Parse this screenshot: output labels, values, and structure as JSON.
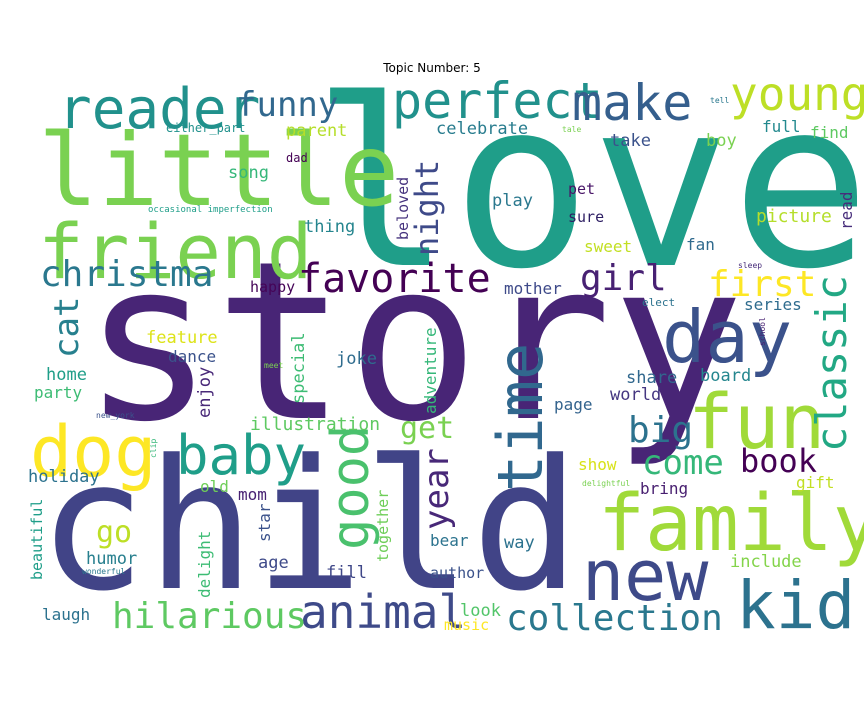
{
  "chart_data": {
    "type": "wordcloud",
    "title": "Topic Number: 5",
    "words": [
      {
        "text": "love",
        "weight": 100,
        "color": "#1f9e89"
      },
      {
        "text": "story",
        "weight": 98,
        "color": "#482576"
      },
      {
        "text": "child",
        "weight": 90,
        "color": "#414487"
      },
      {
        "text": "little",
        "weight": 55,
        "color": "#7ad151"
      },
      {
        "text": "friend",
        "weight": 45,
        "color": "#7ad151"
      },
      {
        "text": "fun",
        "weight": 45,
        "color": "#a0da39"
      },
      {
        "text": "family",
        "weight": 44,
        "color": "#a0da39"
      },
      {
        "text": "day",
        "weight": 42,
        "color": "#3b528b"
      },
      {
        "text": "new",
        "weight": 40,
        "color": "#3e4a89"
      },
      {
        "text": "dog",
        "weight": 40,
        "color": "#fde725"
      },
      {
        "text": "kid",
        "weight": 38,
        "color": "#2c728e"
      },
      {
        "text": "time",
        "weight": 36,
        "color": "#31688e"
      },
      {
        "text": "reader",
        "weight": 33,
        "color": "#21918c"
      },
      {
        "text": "perfect",
        "weight": 33,
        "color": "#21918c"
      },
      {
        "text": "make",
        "weight": 33,
        "color": "#355f8d"
      },
      {
        "text": "baby",
        "weight": 32,
        "color": "#1f9e89"
      },
      {
        "text": "good",
        "weight": 31,
        "color": "#4ac16d"
      },
      {
        "text": "young",
        "weight": 29,
        "color": "#bddf26"
      },
      {
        "text": "classic",
        "weight": 28,
        "color": "#22a884"
      },
      {
        "text": "animal",
        "weight": 27,
        "color": "#3e4a89"
      },
      {
        "text": "favorite",
        "weight": 26,
        "color": "#440154"
      },
      {
        "text": "christma",
        "weight": 24,
        "color": "#2a788e"
      },
      {
        "text": "hilarious",
        "weight": 24,
        "color": "#5ec962"
      },
      {
        "text": "collection",
        "weight": 24,
        "color": "#2a788e"
      },
      {
        "text": "funny",
        "weight": 23,
        "color": "#31688e"
      },
      {
        "text": "girl",
        "weight": 23,
        "color": "#482173"
      },
      {
        "text": "book",
        "weight": 22,
        "color": "#440154"
      },
      {
        "text": "night",
        "weight": 22,
        "color": "#3e4a89"
      },
      {
        "text": "first",
        "weight": 22,
        "color": "#fde725"
      },
      {
        "text": "come",
        "weight": 21,
        "color": "#35b779"
      },
      {
        "text": "big",
        "weight": 21,
        "color": "#2c728e"
      },
      {
        "text": "year",
        "weight": 21,
        "color": "#482878"
      },
      {
        "text": "cat",
        "weight": 20,
        "color": "#27808e"
      },
      {
        "text": "get",
        "weight": 18,
        "color": "#7ad151"
      },
      {
        "text": "go",
        "weight": 18,
        "color": "#bddf26"
      },
      {
        "text": "picture",
        "weight": 12,
        "color": "#b5de2b"
      },
      {
        "text": "celebrate",
        "weight": 11,
        "color": "#287c8e"
      },
      {
        "text": "take",
        "weight": 11,
        "color": "#3b528b"
      },
      {
        "text": "parent",
        "weight": 11,
        "color": "#b5de2b"
      },
      {
        "text": "song",
        "weight": 11,
        "color": "#35b779"
      },
      {
        "text": "thing",
        "weight": 11,
        "color": "#25858e"
      },
      {
        "text": "play",
        "weight": 11,
        "color": "#2a788e"
      },
      {
        "text": "full",
        "weight": 11,
        "color": "#23898e"
      },
      {
        "text": "find",
        "weight": 11,
        "color": "#5ec962"
      },
      {
        "text": "boy",
        "weight": 11,
        "color": "#7ad151"
      },
      {
        "text": "read",
        "weight": 11,
        "color": "#472d7b"
      },
      {
        "text": "fan",
        "weight": 11,
        "color": "#306a8e"
      },
      {
        "text": "sweet",
        "weight": 11,
        "color": "#c2df23"
      },
      {
        "text": "sure",
        "weight": 11,
        "color": "#2d1e63"
      },
      {
        "text": "pet",
        "weight": 11,
        "color": "#481467"
      },
      {
        "text": "beloved",
        "weight": 11,
        "color": "#46337e"
      },
      {
        "text": "mother",
        "weight": 11,
        "color": "#3e4a89"
      },
      {
        "text": "happy",
        "weight": 11,
        "color": "#450457"
      },
      {
        "text": "series",
        "weight": 11,
        "color": "#2f6c8e"
      },
      {
        "text": "feature",
        "weight": 11,
        "color": "#dde318"
      },
      {
        "text": "dance",
        "weight": 11,
        "color": "#3b528b"
      },
      {
        "text": "joke",
        "weight": 11,
        "color": "#2f6c8e"
      },
      {
        "text": "special",
        "weight": 11,
        "color": "#3dbc74"
      },
      {
        "text": "adventure",
        "weight": 11,
        "color": "#35b779"
      },
      {
        "text": "share",
        "weight": 11,
        "color": "#31688e"
      },
      {
        "text": "board",
        "weight": 11,
        "color": "#24868e"
      },
      {
        "text": "page",
        "weight": 11,
        "color": "#33638d"
      },
      {
        "text": "world",
        "weight": 11,
        "color": "#453781"
      },
      {
        "text": "home",
        "weight": 11,
        "color": "#1f9e89"
      },
      {
        "text": "party",
        "weight": 11,
        "color": "#3dbc74"
      },
      {
        "text": "enjoy",
        "weight": 11,
        "color": "#482878"
      },
      {
        "text": "illustration",
        "weight": 11,
        "color": "#5ec962"
      },
      {
        "text": "holiday",
        "weight": 11,
        "color": "#2c728e"
      },
      {
        "text": "old",
        "weight": 11,
        "color": "#6ece58"
      },
      {
        "text": "mom",
        "weight": 11,
        "color": "#482173"
      },
      {
        "text": "show",
        "weight": 11,
        "color": "#d8e219"
      },
      {
        "text": "bring",
        "weight": 11,
        "color": "#481f70"
      },
      {
        "text": "gift",
        "weight": 11,
        "color": "#c2df23"
      },
      {
        "text": "humor",
        "weight": 11,
        "color": "#277f8e"
      },
      {
        "text": "delight",
        "weight": 11,
        "color": "#3dbc74"
      },
      {
        "text": "star",
        "weight": 11,
        "color": "#3b528b"
      },
      {
        "text": "together",
        "weight": 11,
        "color": "#6ece58"
      },
      {
        "text": "age",
        "weight": 11,
        "color": "#3e4a89"
      },
      {
        "text": "fill",
        "weight": 11,
        "color": "#3f4788"
      },
      {
        "text": "bear",
        "weight": 11,
        "color": "#2c738e"
      },
      {
        "text": "way",
        "weight": 11,
        "color": "#2c728e"
      },
      {
        "text": "author",
        "weight": 11,
        "color": "#3b528b"
      },
      {
        "text": "include",
        "weight": 11,
        "color": "#84d44b"
      },
      {
        "text": "laugh",
        "weight": 11,
        "color": "#2c728e"
      },
      {
        "text": "look",
        "weight": 11,
        "color": "#52c569"
      },
      {
        "text": "music",
        "weight": 11,
        "color": "#fde725"
      },
      {
        "text": "beautiful",
        "weight": 11,
        "color": "#1f9e89"
      },
      {
        "text": "dad",
        "weight": 7,
        "color": "#440154"
      },
      {
        "text": "either_part",
        "weight": 7,
        "color": "#21918c"
      },
      {
        "text": "occasional imperfection",
        "weight": 5,
        "color": "#1f9e89"
      },
      {
        "text": "tell",
        "weight": 5,
        "color": "#2a788e"
      },
      {
        "text": "tale",
        "weight": 5,
        "color": "#7ad151"
      },
      {
        "text": "sleep",
        "weight": 5,
        "color": "#472c7a"
      },
      {
        "text": "elect",
        "weight": 6,
        "color": "#2c728e"
      },
      {
        "text": "school",
        "weight": 5,
        "color": "#482173"
      },
      {
        "text": "meet",
        "weight": 5,
        "color": "#7ad151"
      },
      {
        "text": "new_york",
        "weight": 5,
        "color": "#3b528b"
      },
      {
        "text": "clip",
        "weight": 5,
        "color": "#35b779"
      },
      {
        "text": "delightful",
        "weight": 5,
        "color": "#7ad151"
      },
      {
        "text": "wonderful",
        "weight": 5,
        "color": "#2a788e"
      }
    ]
  }
}
